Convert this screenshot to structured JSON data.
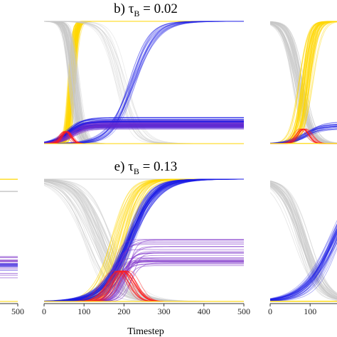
{
  "chart_data": [
    {
      "type": "line",
      "panel": "a",
      "title": "",
      "xlabel": "",
      "xlim": [
        0,
        500
      ],
      "xticks": [
        500
      ],
      "series": [
        {
          "color": "#FFD700",
          "kind": "flat",
          "level": 1.0,
          "n": 6,
          "opacity": 0.7
        },
        {
          "color": "#C8C8C8",
          "kind": "flat",
          "level": 0.83,
          "n": 6,
          "opacity": 0.6
        },
        {
          "color": "#7A2CC8",
          "kind": "flat",
          "level": 0.27,
          "n": 14,
          "opacity": 0.55,
          "spread": 0.12
        },
        {
          "color": "#1C1CE6",
          "kind": "flat",
          "level": 0.27,
          "n": 6,
          "opacity": 0.45,
          "spread": 0.1
        },
        {
          "color": "#FFD700",
          "kind": "flat",
          "level": 0.0,
          "n": 6,
          "opacity": 0.7
        }
      ]
    },
    {
      "type": "line",
      "panel": "b",
      "title": "b) τB = 0.02",
      "title_prefix": "b) ",
      "title_symbol": "τ",
      "title_sub": "B",
      "title_value": " = 0.02",
      "xlabel": "",
      "xlim": [
        0,
        500
      ],
      "series": [
        {
          "color": "#FFD700",
          "kind": "rise",
          "mid": 70,
          "mid_spread": 14,
          "width": 5,
          "n": 70,
          "opacity": 0.45
        },
        {
          "color": "#C8C8C8",
          "kind": "fall",
          "mid": 75,
          "mid_spread": 18,
          "width": 8,
          "n": 60,
          "opacity": 0.45
        },
        {
          "color": "#C8C8C8",
          "kind": "fall",
          "mid": 200,
          "mid_spread": 40,
          "width": 20,
          "n": 15,
          "opacity": 0.35
        },
        {
          "color": "#1C1CE6",
          "kind": "rise",
          "mid": 220,
          "mid_spread": 18,
          "width": 28,
          "n": 20,
          "opacity": 0.35
        },
        {
          "color": "#1C1CE6",
          "kind": "plateau",
          "mid": 60,
          "mid_spread": 10,
          "width": 18,
          "level": 0.17,
          "level_spread": 0.07,
          "n": 70,
          "opacity": 0.4
        },
        {
          "color": "#7A2CC8",
          "kind": "plateau",
          "mid": 70,
          "mid_spread": 12,
          "width": 18,
          "level": 0.15,
          "level_spread": 0.06,
          "n": 30,
          "opacity": 0.35
        },
        {
          "color": "#FF1A1A",
          "kind": "bump",
          "mid": 55,
          "mid_spread": 10,
          "width": 8,
          "level": 0.1,
          "n": 15,
          "opacity": 0.5
        },
        {
          "color": "#FFD700",
          "kind": "flat",
          "level": 0.0,
          "n": 3,
          "opacity": 0.8
        }
      ]
    },
    {
      "type": "line",
      "panel": "c",
      "title": "",
      "xlabel": "",
      "xlim": [
        0,
        500
      ],
      "xticks": [
        0,
        100
      ],
      "series": [
        {
          "color": "#C8C8C8",
          "kind": "fall",
          "mid": 70,
          "mid_spread": 25,
          "width": 15,
          "n": 50,
          "opacity": 0.45
        },
        {
          "color": "#FFD700",
          "kind": "rise",
          "mid": 90,
          "mid_spread": 25,
          "width": 10,
          "n": 50,
          "opacity": 0.45
        },
        {
          "color": "#1C1CE6",
          "kind": "plateau",
          "mid": 90,
          "mid_spread": 20,
          "width": 20,
          "level": 0.15,
          "level_spread": 0.05,
          "n": 20,
          "opacity": 0.4
        },
        {
          "color": "#FF1A1A",
          "kind": "bump",
          "mid": 80,
          "mid_spread": 12,
          "width": 10,
          "level": 0.12,
          "n": 12,
          "opacity": 0.5
        },
        {
          "color": "#FFD700",
          "kind": "flat",
          "level": 0.0,
          "n": 3,
          "opacity": 0.8
        }
      ]
    },
    {
      "type": "line",
      "panel": "d",
      "title": "",
      "xlabel": "",
      "xlim": [
        0,
        500
      ],
      "xticks": [
        500
      ],
      "series": [
        {
          "color": "#FFD700",
          "kind": "flat",
          "level": 1.0,
          "n": 4,
          "opacity": 0.7
        },
        {
          "color": "#C8C8C8",
          "kind": "flat",
          "level": 0.9,
          "n": 6,
          "opacity": 0.6
        },
        {
          "color": "#7A2CC8",
          "kind": "flat",
          "level": 0.3,
          "n": 22,
          "opacity": 0.6,
          "spread": 0.14
        },
        {
          "color": "#1C1CE6",
          "kind": "flat",
          "level": 0.28,
          "n": 8,
          "opacity": 0.5,
          "spread": 0.1
        },
        {
          "color": "#FFD700",
          "kind": "flat",
          "level": 0.0,
          "n": 4,
          "opacity": 0.7
        }
      ]
    },
    {
      "type": "line",
      "panel": "e",
      "title": "e) τB = 0.13",
      "title_prefix": "e) ",
      "title_symbol": "τ",
      "title_sub": "B",
      "title_value": " = 0.13",
      "xlabel": "Timestep",
      "xlim": [
        0,
        500
      ],
      "xticks": [
        0,
        100,
        200,
        300,
        400,
        500
      ],
      "series": [
        {
          "color": "#C8C8C8",
          "kind": "fall",
          "mid": 140,
          "mid_spread": 55,
          "width": 30,
          "n": 55,
          "opacity": 0.4
        },
        {
          "color": "#C8C8C8",
          "kind": "flat",
          "level": 1.0,
          "n": 4,
          "opacity": 0.5
        },
        {
          "color": "#FFD700",
          "kind": "rise",
          "mid": 190,
          "mid_spread": 45,
          "width": 22,
          "n": 45,
          "opacity": 0.35
        },
        {
          "color": "#1C1CE6",
          "kind": "rise",
          "mid": 215,
          "mid_spread": 18,
          "width": 32,
          "n": 65,
          "opacity": 0.35
        },
        {
          "color": "#7A2CC8",
          "kind": "plateau",
          "mid": 190,
          "mid_spread": 40,
          "width": 12,
          "level": 0.4,
          "level_spread": 0.2,
          "n": 30,
          "opacity": 0.55
        },
        {
          "color": "#FF1A1A",
          "kind": "bump",
          "mid": 200,
          "mid_spread": 30,
          "width": 18,
          "level": 0.25,
          "n": 20,
          "opacity": 0.5
        },
        {
          "color": "#FFD700",
          "kind": "flat",
          "level": 0.0,
          "n": 3,
          "opacity": 0.8
        }
      ]
    },
    {
      "type": "line",
      "panel": "f",
      "title": "",
      "xlabel": "",
      "xlim": [
        0,
        500
      ],
      "xticks": [
        0,
        100
      ],
      "series": [
        {
          "color": "#C8C8C8",
          "kind": "fall",
          "mid": 80,
          "mid_spread": 25,
          "width": 25,
          "n": 40,
          "opacity": 0.45
        },
        {
          "color": "#1C1CE6",
          "kind": "rise",
          "mid": 160,
          "mid_spread": 25,
          "width": 35,
          "n": 40,
          "opacity": 0.35
        },
        {
          "color": "#FFD700",
          "kind": "flat",
          "level": 0.0,
          "n": 3,
          "opacity": 0.8
        }
      ]
    }
  ]
}
